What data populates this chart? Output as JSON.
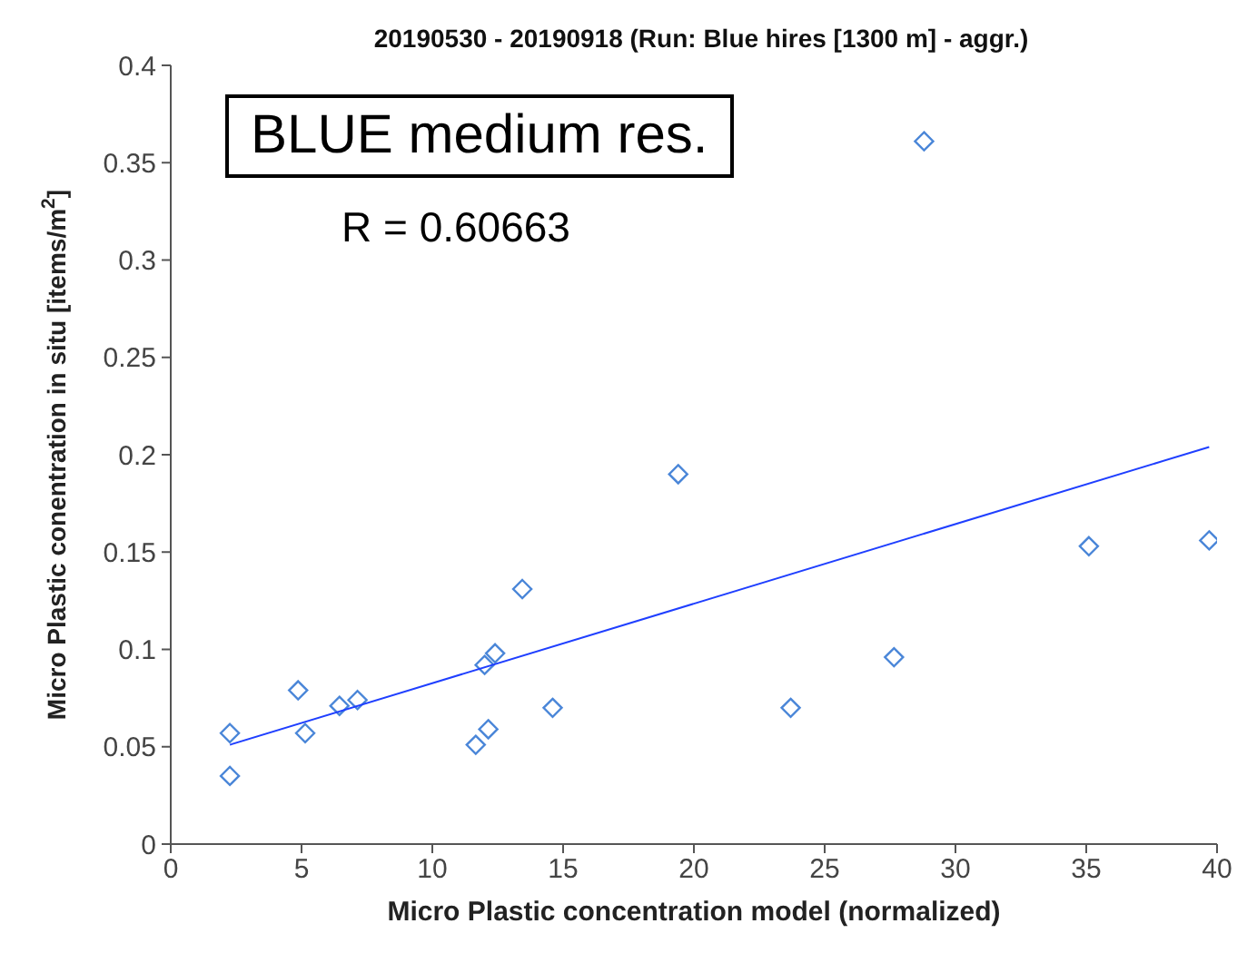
{
  "chart_data": {
    "type": "scatter",
    "title": "20190530 - 20190918 (Run: Blue hires [1300 m] - aggr.)",
    "xlabel": "Micro Plastic concentration model (normalized)",
    "ylabel": "Micro Plastic conentration in situ [items/m$^{2}$]",
    "annotations": [
      "BLUE medium res.",
      "R = 0.60663"
    ],
    "xlim": [
      0,
      40
    ],
    "ylim": [
      0,
      0.4
    ],
    "xticks": [
      0,
      5,
      10,
      15,
      20,
      25,
      30,
      35,
      40
    ],
    "yticks": [
      0,
      0.05,
      0.1,
      0.15,
      0.2,
      0.25,
      0.3,
      0.35,
      0.4
    ],
    "grid": false,
    "legend": false,
    "marker": "diamond",
    "series": [
      {
        "color": "#4a86d8",
        "x": [
          2.26,
          2.26,
          4.87,
          5.14,
          6.45,
          7.14,
          11.66,
          12.14,
          12.0,
          12.4,
          13.44,
          14.6,
          19.4,
          23.7,
          27.65,
          28.8,
          35.1,
          39.7
        ],
        "values": [
          0.035,
          0.057,
          0.079,
          0.057,
          0.071,
          0.074,
          0.051,
          0.059,
          0.092,
          0.098,
          0.131,
          0.07,
          0.19,
          0.07,
          0.096,
          0.361,
          0.153,
          0.156
        ]
      },
      {
        "type": "line",
        "color": "#1f3fff",
        "marker": "none",
        "line_style": "solid",
        "x": [
          2.26,
          39.7
        ],
        "values": [
          0.051,
          0.204
        ]
      }
    ]
  }
}
